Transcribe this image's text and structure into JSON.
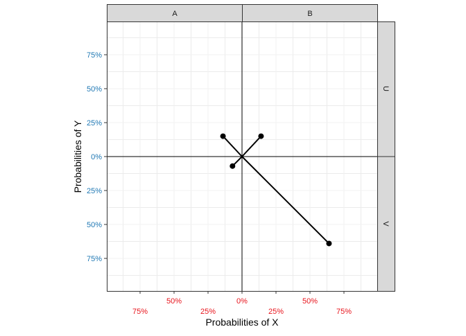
{
  "chart_data": {
    "type": "scatter",
    "xlabel": "Probabilities of X",
    "ylabel": "Probabilities of Y",
    "facet_columns": [
      "A",
      "B"
    ],
    "facet_rows": [
      "U",
      "V"
    ],
    "xlim": [
      -0.92,
      1.0
    ],
    "ylim": [
      -0.99,
      1.0
    ],
    "x_ticks": [
      -0.75,
      -0.5,
      -0.25,
      0,
      0.25,
      0.5,
      0.75
    ],
    "x_tick_labels": [
      "75%",
      "50%",
      "25%",
      "0%",
      "25%",
      "50%",
      "75%"
    ],
    "y_ticks": [
      0.75,
      0.5,
      0.25,
      0,
      -0.25,
      -0.5,
      -0.75
    ],
    "y_tick_labels": [
      "75%",
      "50%",
      "25%",
      "0%",
      "25%",
      "50%",
      "75%"
    ],
    "grid": true,
    "x_tick_color": "#E8141C",
    "y_tick_color": "#1F78B4",
    "points": [
      {
        "x": -0.14,
        "y": 0.15
      },
      {
        "x": 0.14,
        "y": 0.15
      },
      {
        "x": -0.07,
        "y": -0.07
      },
      {
        "x": 0.64,
        "y": -0.64
      }
    ],
    "segments_from_origin": true
  }
}
